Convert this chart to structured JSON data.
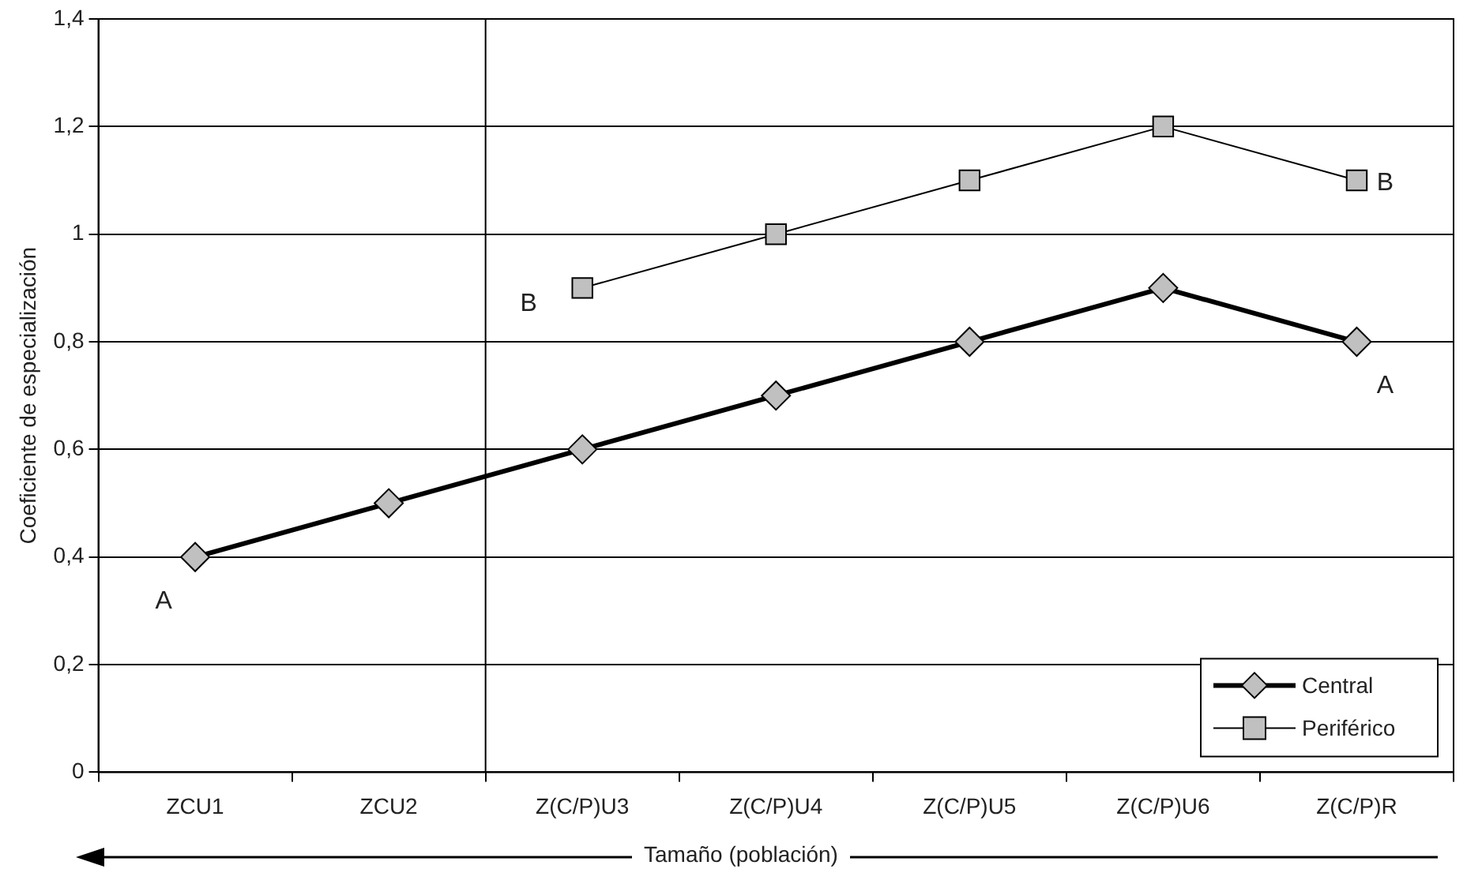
{
  "chart_data": {
    "type": "line",
    "ylabel": "Coeficiente de especialización",
    "xlabel": "Tamaño (población)",
    "categories": [
      "ZCU1",
      "ZCU2",
      "Z(C/P)U3",
      "Z(C/P)U4",
      "Z(C/P)U5",
      "Z(C/P)U6",
      "Z(C/P)R"
    ],
    "series": [
      {
        "name": "Central",
        "color": "#c0c0c0",
        "marker": "diamond",
        "values": [
          0.4,
          0.5,
          0.6,
          0.7,
          0.8,
          0.9,
          0.8
        ]
      },
      {
        "name": "Periférico",
        "color": "#c0c0c0",
        "marker": "square",
        "values": [
          null,
          null,
          0.9,
          1.0,
          1.1,
          1.2,
          1.1
        ]
      }
    ],
    "ylim": [
      0,
      1.4
    ],
    "yticks": [
      {
        "value": 0,
        "label": "0"
      },
      {
        "value": 0.2,
        "label": "0,2"
      },
      {
        "value": 0.4,
        "label": "0,4"
      },
      {
        "value": 0.6,
        "label": "0,6"
      },
      {
        "value": 0.8,
        "label": "0,8"
      },
      {
        "value": 1,
        "label": "1"
      },
      {
        "value": 1.2,
        "label": "1,2"
      },
      {
        "value": 1.4,
        "label": "1,4"
      }
    ],
    "grid": "y",
    "legend": "bottom right",
    "line_style": "solid",
    "annotations": [
      {
        "text": "A",
        "x": "ZCU1",
        "y": 0.4
      },
      {
        "text": "A",
        "x": "Z(C/P)R",
        "y": 0.8
      },
      {
        "text": "B",
        "x": "Z(C/P)U3",
        "y": 0.9
      },
      {
        "text": "B",
        "x": "Z(C/P)R",
        "y": 1.1
      }
    ]
  }
}
